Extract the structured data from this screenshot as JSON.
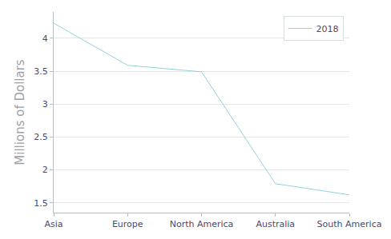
{
  "chart_data": {
    "type": "line",
    "y_label": "Millions of Dollars",
    "categories": [
      "Asia",
      "Europe",
      "North America",
      "Australia",
      "South America"
    ],
    "series": [
      {
        "name": "2018",
        "color": "#8fd3dc",
        "values": [
          4.23,
          3.59,
          3.49,
          1.79,
          1.62
        ]
      }
    ],
    "ylim": [
      1.35,
      4.4
    ],
    "yticks": [
      1.5,
      2,
      2.5,
      3,
      3.5,
      4
    ],
    "grid": true,
    "legend": "top-right"
  }
}
